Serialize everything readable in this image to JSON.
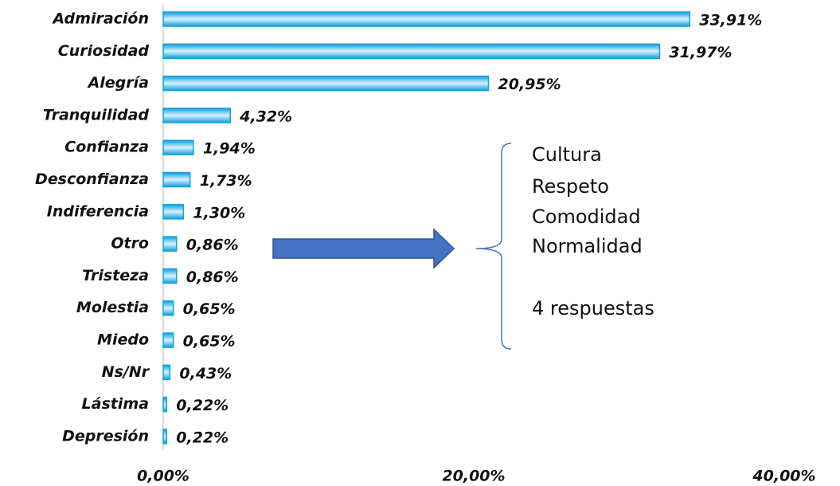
{
  "chart_data": {
    "type": "bar",
    "orientation": "horizontal",
    "categories": [
      "Admiración",
      "Curiosidad",
      "Alegría",
      "Tranquilidad",
      "Confianza",
      "Desconfianza",
      "Indiferencia",
      "Otro",
      "Tristeza",
      "Molestia",
      "Miedo",
      "Ns/Nr",
      "Lástima",
      "Depresión"
    ],
    "values": [
      33.91,
      31.97,
      20.95,
      4.32,
      1.94,
      1.73,
      1.3,
      0.86,
      0.86,
      0.65,
      0.65,
      0.43,
      0.22,
      0.22
    ],
    "value_labels": [
      "33,91%",
      "31,97%",
      "20,95%",
      "4,32%",
      "1,94%",
      "1,73%",
      "1,30%",
      "0,86%",
      "0,86%",
      "0,65%",
      "0,65%",
      "0,43%",
      "0,22%",
      "0,22%"
    ],
    "color": "#12a3e3",
    "xlim": [
      0,
      40
    ],
    "xticks": [
      {
        "value": 0,
        "label": "0,00%"
      },
      {
        "value": 20,
        "label": "20,00%"
      },
      {
        "value": 40,
        "label": "40,00%"
      }
    ],
    "annotation": [
      "Cultura",
      "Respeto",
      "Comodidad",
      "Normalidad",
      "4 respuestas"
    ]
  }
}
